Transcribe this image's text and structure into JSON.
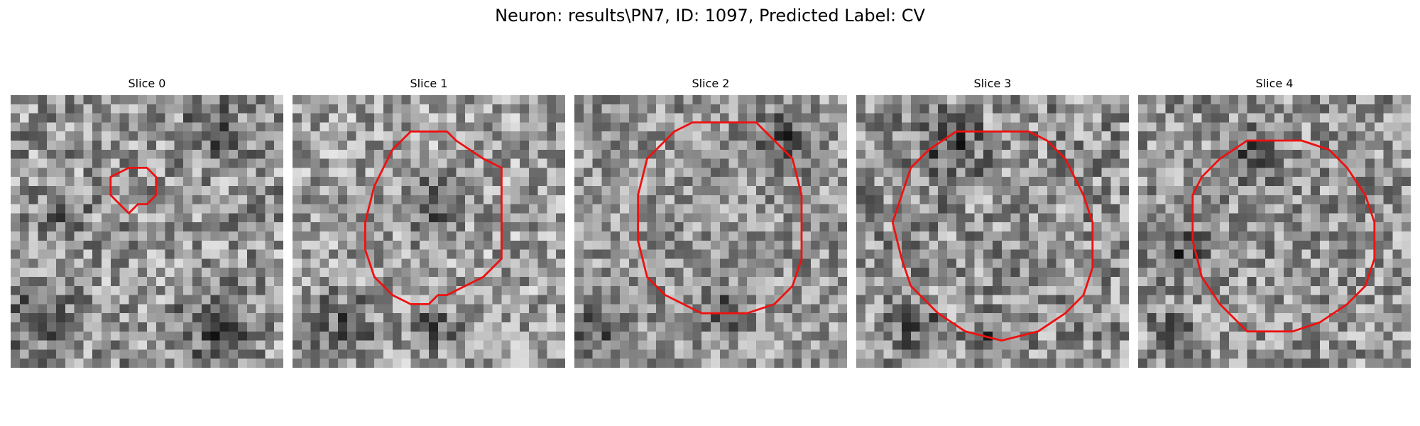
{
  "figure": {
    "title": "Neuron: results\\PN7, ID: 1097, Predicted Label: CV"
  },
  "contour_color": "#ee1111",
  "panels": [
    {
      "title": "Slice 0",
      "seed": 11,
      "base": 150,
      "spread": 75,
      "contour": [
        [
          13,
          8
        ],
        [
          15,
          8
        ],
        [
          16,
          9
        ],
        [
          16,
          11
        ],
        [
          15,
          12
        ],
        [
          14,
          12
        ],
        [
          13,
          13
        ],
        [
          12,
          12
        ],
        [
          11,
          11
        ],
        [
          11,
          9
        ]
      ],
      "dark_regions": [
        [
          3,
          24,
          6
        ],
        [
          22,
          25,
          6
        ],
        [
          5,
          13,
          4
        ],
        [
          22,
          4,
          5
        ]
      ]
    },
    {
      "title": "Slice 1",
      "seed": 23,
      "base": 160,
      "spread": 70,
      "contour": [
        [
          13,
          4
        ],
        [
          17,
          4
        ],
        [
          18,
          5
        ],
        [
          21,
          7
        ],
        [
          23,
          8
        ],
        [
          23,
          18
        ],
        [
          21,
          20
        ],
        [
          19,
          21
        ],
        [
          17,
          22
        ],
        [
          16,
          22
        ],
        [
          15,
          23
        ],
        [
          13,
          23
        ],
        [
          11,
          22
        ],
        [
          9,
          20
        ],
        [
          8,
          17
        ],
        [
          8,
          14
        ],
        [
          9,
          10
        ],
        [
          10,
          8
        ],
        [
          11,
          6
        ],
        [
          12,
          5
        ]
      ],
      "dark_regions": [
        [
          5,
          25,
          6
        ],
        [
          15,
          25,
          4
        ],
        [
          15,
          12,
          5
        ]
      ]
    },
    {
      "title": "Slice 2",
      "seed": 37,
      "base": 150,
      "spread": 65,
      "contour": [
        [
          13,
          3
        ],
        [
          20,
          3
        ],
        [
          22,
          5
        ],
        [
          24,
          7
        ],
        [
          25,
          11
        ],
        [
          25,
          18
        ],
        [
          24,
          21
        ],
        [
          22,
          23
        ],
        [
          19,
          24
        ],
        [
          14,
          24
        ],
        [
          12,
          23
        ],
        [
          10,
          22
        ],
        [
          8,
          20
        ],
        [
          7,
          16
        ],
        [
          7,
          11
        ],
        [
          8,
          7
        ],
        [
          10,
          5
        ],
        [
          11,
          4
        ]
      ],
      "dark_regions": [
        [
          2,
          25,
          4
        ],
        [
          23,
          4,
          5
        ],
        [
          16,
          23,
          4
        ]
      ]
    },
    {
      "title": "Slice 3",
      "seed": 51,
      "base": 145,
      "spread": 75,
      "contour": [
        [
          11,
          4
        ],
        [
          19,
          4
        ],
        [
          21,
          5
        ],
        [
          23,
          7
        ],
        [
          24,
          9
        ],
        [
          25,
          11
        ],
        [
          26,
          14
        ],
        [
          26,
          19
        ],
        [
          25,
          22
        ],
        [
          23,
          24
        ],
        [
          20,
          26
        ],
        [
          16,
          27
        ],
        [
          12,
          26
        ],
        [
          9,
          24
        ],
        [
          6,
          21
        ],
        [
          5,
          18
        ],
        [
          4,
          14
        ],
        [
          5,
          11
        ],
        [
          6,
          8
        ],
        [
          8,
          6
        ]
      ],
      "dark_regions": [
        [
          10,
          5,
          5
        ],
        [
          6,
          25,
          4
        ],
        [
          14,
          27,
          3
        ]
      ]
    },
    {
      "title": "Slice 4",
      "seed": 67,
      "base": 150,
      "spread": 70,
      "contour": [
        [
          12,
          5
        ],
        [
          18,
          5
        ],
        [
          21,
          6
        ],
        [
          23,
          8
        ],
        [
          25,
          11
        ],
        [
          26,
          14
        ],
        [
          26,
          18
        ],
        [
          25,
          21
        ],
        [
          23,
          23
        ],
        [
          20,
          25
        ],
        [
          17,
          26
        ],
        [
          12,
          26
        ],
        [
          9,
          23
        ],
        [
          7,
          20
        ],
        [
          6,
          16
        ],
        [
          6,
          11
        ],
        [
          7,
          9
        ],
        [
          9,
          7
        ]
      ],
      "dark_regions": [
        [
          12,
          6,
          5
        ],
        [
          4,
          17,
          5
        ],
        [
          3,
          25,
          3
        ]
      ]
    }
  ]
}
